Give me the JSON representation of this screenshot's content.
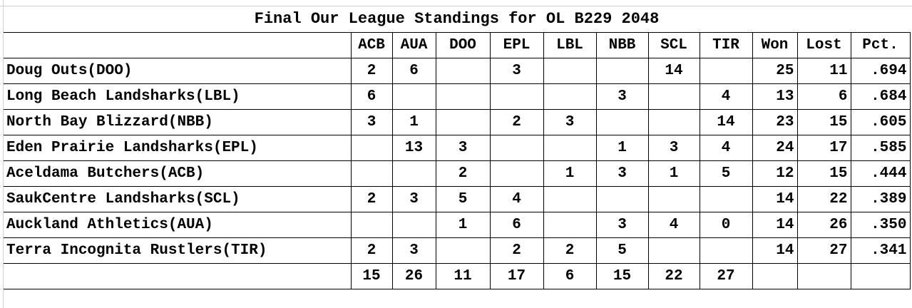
{
  "title": "Final Our League Standings for OL B229 2048",
  "columns": [
    "ACB",
    "AUA",
    "DOO",
    "EPL",
    "LBL",
    "NBB",
    "SCL",
    "TIR",
    "Won",
    "Lost",
    "Pct."
  ],
  "rows": [
    {
      "team": "Doug Outs(DOO)",
      "cells": [
        "2",
        "6",
        "",
        "3",
        "",
        "",
        "14",
        "",
        "25",
        "11",
        ".694"
      ]
    },
    {
      "team": "Long Beach Landsharks(LBL)",
      "cells": [
        "6",
        "",
        "",
        "",
        "",
        "3",
        "",
        "4",
        "13",
        "6",
        ".684"
      ]
    },
    {
      "team": "North Bay Blizzard(NBB)",
      "cells": [
        "3",
        "1",
        "",
        "2",
        "3",
        "",
        "",
        "14",
        "23",
        "15",
        ".605"
      ]
    },
    {
      "team": "Eden Prairie Landsharks(EPL)",
      "cells": [
        "",
        "13",
        "3",
        "",
        "",
        "1",
        "3",
        "4",
        "24",
        "17",
        ".585"
      ]
    },
    {
      "team": "Aceldama Butchers(ACB)",
      "cells": [
        "",
        "",
        "2",
        "",
        "1",
        "3",
        "1",
        "5",
        "12",
        "15",
        ".444"
      ]
    },
    {
      "team": "SaukCentre Landsharks(SCL)",
      "cells": [
        "2",
        "3",
        "5",
        "4",
        "",
        "",
        "",
        "",
        "14",
        "22",
        ".389"
      ]
    },
    {
      "team": "Auckland Athletics(AUA)",
      "cells": [
        "",
        "",
        "1",
        "6",
        "",
        "3",
        "4",
        "0",
        "14",
        "26",
        ".350"
      ]
    },
    {
      "team": "Terra Incognita Rustlers(TIR)",
      "cells": [
        "2",
        "3",
        "",
        "2",
        "2",
        "5",
        "",
        "",
        "14",
        "27",
        ".341"
      ]
    }
  ],
  "totals": [
    "15",
    "26",
    "11",
    "17",
    "6",
    "15",
    "22",
    "27",
    "",
    "",
    ""
  ]
}
